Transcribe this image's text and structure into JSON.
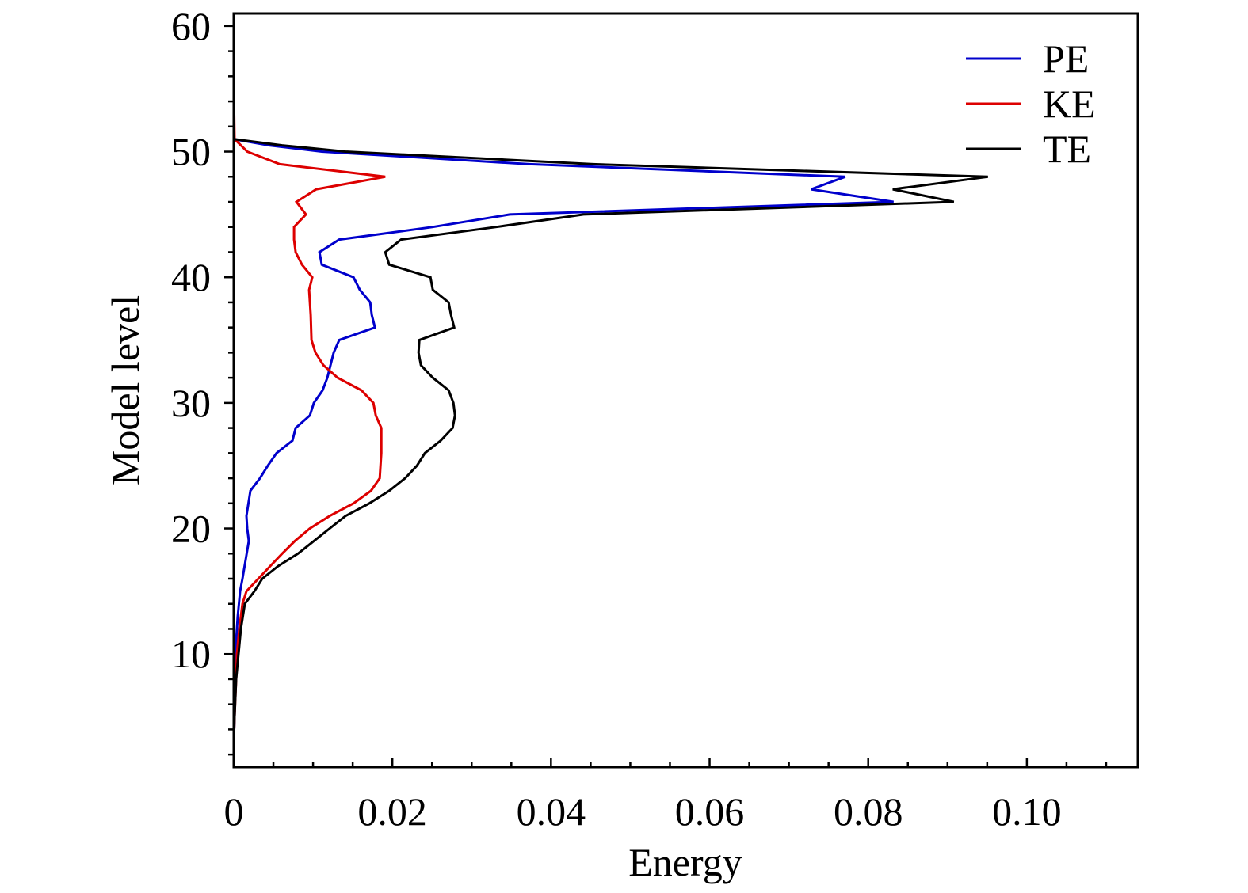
{
  "chart_data": {
    "type": "line",
    "xlabel": "Energy",
    "ylabel": "Model level",
    "xlim": [
      0,
      0.114
    ],
    "ylim": [
      1,
      61
    ],
    "x_ticks": [
      {
        "value": 0,
        "label": "0"
      },
      {
        "value": 0.02,
        "label": "0.02"
      },
      {
        "value": 0.04,
        "label": "0.04"
      },
      {
        "value": 0.06,
        "label": "0.06"
      },
      {
        "value": 0.08,
        "label": "0.08"
      },
      {
        "value": 0.1,
        "label": "0.10"
      }
    ],
    "y_ticks": [
      {
        "value": 10,
        "label": "10"
      },
      {
        "value": 20,
        "label": "20"
      },
      {
        "value": 30,
        "label": "30"
      },
      {
        "value": 40,
        "label": "40"
      },
      {
        "value": 50,
        "label": "50"
      },
      {
        "value": 60,
        "label": "60"
      }
    ],
    "x_minor_step": 0.005,
    "y_minor_step": 2,
    "legend_position": "top-right",
    "grid": false,
    "series": [
      {
        "name": "PE",
        "color": "#0000cc",
        "points": [
          [
            0,
            3
          ],
          [
            0.0001,
            5
          ],
          [
            0.0002,
            8
          ],
          [
            0.0003,
            11
          ],
          [
            0.0005,
            13
          ],
          [
            0.0008,
            15
          ],
          [
            0.0011,
            16
          ],
          [
            0.0019,
            19
          ],
          [
            0.0017,
            20
          ],
          [
            0.0016,
            21
          ],
          [
            0.0021,
            23
          ],
          [
            0.0033,
            24
          ],
          [
            0.0043,
            25
          ],
          [
            0.0054,
            26
          ],
          [
            0.0074,
            27
          ],
          [
            0.0078,
            28
          ],
          [
            0.0096,
            29
          ],
          [
            0.0101,
            30
          ],
          [
            0.0112,
            31
          ],
          [
            0.0118,
            32
          ],
          [
            0.0126,
            34
          ],
          [
            0.0133,
            35
          ],
          [
            0.0178,
            36
          ],
          [
            0.0174,
            37
          ],
          [
            0.0172,
            38
          ],
          [
            0.0159,
            39
          ],
          [
            0.0151,
            40
          ],
          [
            0.0111,
            41
          ],
          [
            0.0108,
            42
          ],
          [
            0.0133,
            43
          ],
          [
            0.0251,
            44
          ],
          [
            0.0348,
            45
          ],
          [
            0.0832,
            46
          ],
          [
            0.0728,
            47
          ],
          [
            0.0771,
            48
          ],
          [
            0.0373,
            49
          ],
          [
            0.0111,
            50
          ],
          [
            0.0045,
            50.5
          ],
          [
            0,
            51
          ],
          [
            0,
            55
          ],
          [
            0,
            61
          ]
        ]
      },
      {
        "name": "KE",
        "color": "#dd0000",
        "points": [
          [
            0,
            3
          ],
          [
            0.0001,
            5
          ],
          [
            0.0003,
            8
          ],
          [
            0.0004,
            10
          ],
          [
            0.0007,
            12
          ],
          [
            0.0011,
            14
          ],
          [
            0.0016,
            15
          ],
          [
            0.0031,
            16
          ],
          [
            0.0046,
            17
          ],
          [
            0.0061,
            18
          ],
          [
            0.0077,
            19
          ],
          [
            0.0096,
            20
          ],
          [
            0.0121,
            21
          ],
          [
            0.0151,
            22
          ],
          [
            0.0173,
            23
          ],
          [
            0.0184,
            24
          ],
          [
            0.0186,
            26
          ],
          [
            0.0186,
            28
          ],
          [
            0.0179,
            29
          ],
          [
            0.0176,
            30
          ],
          [
            0.0161,
            31
          ],
          [
            0.0131,
            32
          ],
          [
            0.0113,
            33
          ],
          [
            0.0103,
            34
          ],
          [
            0.0098,
            35
          ],
          [
            0.0097,
            37
          ],
          [
            0.0095,
            39
          ],
          [
            0.0099,
            40
          ],
          [
            0.0086,
            41
          ],
          [
            0.0078,
            42
          ],
          [
            0.0076,
            43
          ],
          [
            0.0076,
            44
          ],
          [
            0.0091,
            45
          ],
          [
            0.0079,
            46
          ],
          [
            0.0104,
            47
          ],
          [
            0.0191,
            48
          ],
          [
            0.0058,
            49
          ],
          [
            0.0017,
            50
          ],
          [
            0.0001,
            51
          ],
          [
            0,
            55
          ],
          [
            0,
            61
          ]
        ]
      },
      {
        "name": "TE",
        "color": "#000000",
        "points": [
          [
            0,
            3
          ],
          [
            0.0001,
            5
          ],
          [
            0.0003,
            8
          ],
          [
            0.0006,
            10
          ],
          [
            0.0009,
            12
          ],
          [
            0.0014,
            14
          ],
          [
            0.0026,
            15
          ],
          [
            0.0036,
            16
          ],
          [
            0.0056,
            17
          ],
          [
            0.0081,
            18
          ],
          [
            0.0101,
            19
          ],
          [
            0.0121,
            20
          ],
          [
            0.0141,
            21
          ],
          [
            0.0171,
            22
          ],
          [
            0.0196,
            23
          ],
          [
            0.0216,
            24
          ],
          [
            0.0231,
            25
          ],
          [
            0.0241,
            26
          ],
          [
            0.0261,
            27
          ],
          [
            0.0276,
            28
          ],
          [
            0.0279,
            29
          ],
          [
            0.0277,
            30
          ],
          [
            0.0271,
            31
          ],
          [
            0.0251,
            32
          ],
          [
            0.0236,
            33
          ],
          [
            0.0233,
            34
          ],
          [
            0.0234,
            35
          ],
          [
            0.0278,
            36
          ],
          [
            0.0274,
            37
          ],
          [
            0.0271,
            38
          ],
          [
            0.0251,
            39
          ],
          [
            0.0248,
            40
          ],
          [
            0.0196,
            41
          ],
          [
            0.0191,
            42
          ],
          [
            0.0211,
            43
          ],
          [
            0.0331,
            44
          ],
          [
            0.0441,
            45
          ],
          [
            0.0908,
            46
          ],
          [
            0.0831,
            47
          ],
          [
            0.0951,
            48
          ],
          [
            0.0453,
            49
          ],
          [
            0.0141,
            50
          ],
          [
            0.0061,
            50.5
          ],
          [
            0,
            51
          ],
          [
            0,
            55
          ],
          [
            0,
            61
          ]
        ]
      }
    ]
  }
}
